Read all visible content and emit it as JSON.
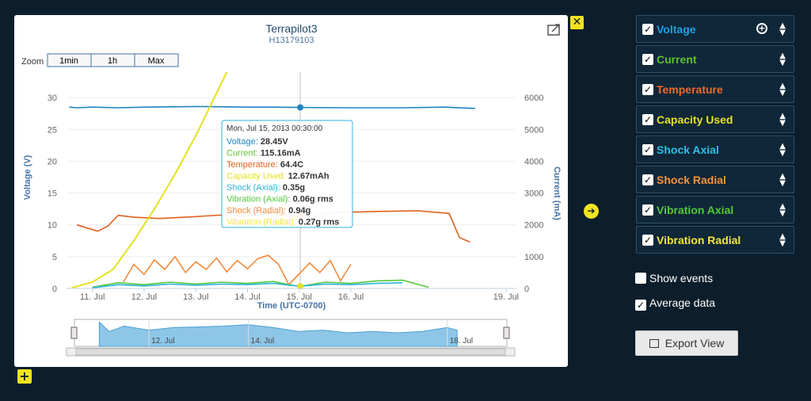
{
  "chart": {
    "title": "Terrapilot3",
    "subtitle": "H13179103",
    "zoom_label": "Zoom",
    "zoom_buttons": [
      "1min",
      "1h",
      "Max"
    ],
    "ylabel_left": "Voltage (V)",
    "ylabel_right": "Current (mA)",
    "xlabel": "Time (UTC-0700)",
    "nav_labels": [
      "12. Jul",
      "14. Jul",
      "18. Jul"
    ]
  },
  "tooltip": {
    "header": "Mon, Jul 15, 2013 00:30:00",
    "rows": [
      {
        "label": "Voltage:",
        "value": "28.45V",
        "color": "#1f82c0"
      },
      {
        "label": "Current:",
        "value": "115.16mA",
        "color": "#5fc02e"
      },
      {
        "label": "Temperature:",
        "value": "64.4C",
        "color": "#e0601c"
      },
      {
        "label": "Capacity Used:",
        "value": "12.67mAh",
        "color": "#e6e020"
      },
      {
        "label": "Shock (Axial):",
        "value": "0.35g",
        "color": "#2cb4dc"
      },
      {
        "label": "Vibration (Axial):",
        "value": "0.06g rms",
        "color": "#55c83a"
      },
      {
        "label": "Shock (Radial):",
        "value": "0.94g",
        "color": "#f08a3c"
      },
      {
        "label": "Vibration (Radial):",
        "value": "0.27g rms",
        "color": "#f4e63a"
      }
    ]
  },
  "chart_data": {
    "type": "line",
    "title": "Terrapilot3",
    "subtitle": "H13179103",
    "xlabel": "Time (UTC-0700)",
    "ylabel": "Voltage (V)",
    "y2label": "Current (mA)",
    "x_ticks": [
      "11. Jul",
      "12. Jul",
      "13. Jul",
      "14. Jul",
      "15. Jul",
      "16. Jul",
      "19. Jul"
    ],
    "x_tick_days": [
      11,
      12,
      13,
      14,
      15,
      16,
      19
    ],
    "xlim_days": [
      10.5,
      19.2
    ],
    "y_ticks": [
      0,
      5,
      10,
      15,
      20,
      25,
      30
    ],
    "y2_ticks": [
      0,
      1000,
      2000,
      3000,
      4000,
      5000,
      6000
    ],
    "ylim": [
      0,
      34
    ],
    "y2lim": [
      0,
      6800
    ],
    "series": [
      {
        "name": "Voltage",
        "color": "#1f82c0",
        "x": [
          10.55,
          10.7,
          11.0,
          11.5,
          12.0,
          13.0,
          14.0,
          14.5,
          15.0,
          16.0,
          17.0,
          17.8,
          18.4
        ],
        "y": [
          28.5,
          28.4,
          28.5,
          28.4,
          28.5,
          28.6,
          28.5,
          28.5,
          28.45,
          28.4,
          28.4,
          28.5,
          28.3
        ]
      },
      {
        "name": "Temperature",
        "color": "#e0601c",
        "x": [
          10.7,
          10.9,
          11.1,
          11.3,
          11.5,
          11.8,
          12.3,
          13.0,
          13.6,
          14.0,
          14.4,
          15.0,
          15.6,
          16.5,
          17.3,
          17.9,
          18.1,
          18.3
        ],
        "y": [
          10.0,
          9.5,
          9.0,
          9.8,
          11.5,
          11.2,
          11.0,
          11.3,
          11.6,
          11.4,
          11.8,
          11.3,
          11.9,
          12.1,
          12.2,
          11.8,
          8.0,
          7.3
        ]
      },
      {
        "name": "Capacity Used",
        "color": "#e6e020",
        "x": [
          10.6,
          11.0,
          11.4,
          11.8,
          12.2,
          12.6,
          13.0,
          13.6
        ],
        "y": [
          0.1,
          1.0,
          3.0,
          7.5,
          12.5,
          18.0,
          24.0,
          34.0
        ]
      },
      {
        "name": "Shock Radial",
        "color": "#f08a3c",
        "x": [
          11.6,
          11.8,
          12.0,
          12.2,
          12.4,
          12.6,
          12.8,
          13.0,
          13.2,
          13.4,
          13.6,
          13.8,
          14.0,
          14.2,
          14.4,
          14.6,
          14.8,
          15.2,
          15.4,
          15.6,
          15.8,
          16.0
        ],
        "y": [
          1.0,
          3.8,
          2.2,
          4.5,
          3.0,
          5.0,
          2.5,
          4.2,
          3.0,
          4.8,
          2.6,
          4.4,
          3.1,
          4.7,
          5.2,
          3.8,
          0.6,
          4.0,
          2.5,
          4.4,
          1.2,
          3.8
        ]
      },
      {
        "name": "Vibration Axial",
        "color": "#55c83a",
        "x": [
          11.0,
          11.5,
          12.0,
          12.5,
          13.0,
          13.5,
          14.0,
          14.5,
          15.0,
          15.5,
          16.0,
          16.5,
          17.0,
          17.5
        ],
        "y": [
          0.2,
          0.9,
          0.6,
          1.0,
          0.7,
          1.0,
          0.8,
          1.1,
          0.3,
          1.0,
          0.8,
          1.2,
          1.3,
          0.2
        ]
      },
      {
        "name": "Shock Axial",
        "color": "#2cb4dc",
        "x": [
          11.0,
          11.5,
          12.0,
          12.5,
          13.0,
          13.5,
          14.0,
          14.5,
          15.0,
          15.5,
          16.0,
          16.5,
          17.0
        ],
        "y": [
          0.1,
          0.6,
          0.4,
          0.7,
          0.5,
          0.7,
          0.6,
          0.8,
          0.35,
          0.7,
          0.6,
          0.8,
          0.9
        ]
      }
    ],
    "tooltip_x_day": 15.02,
    "navigator": {
      "x": [
        11.0,
        11.2,
        11.5,
        12.0,
        12.5,
        13.0,
        13.5,
        14.0,
        14.5,
        15.0,
        15.5,
        16.0,
        16.5,
        17.0,
        17.5,
        18.0,
        18.2
      ],
      "y": [
        0.9,
        0.55,
        0.75,
        0.6,
        0.7,
        0.72,
        0.75,
        0.8,
        0.7,
        0.55,
        0.6,
        0.5,
        0.55,
        0.5,
        0.55,
        0.7,
        0.6
      ]
    }
  },
  "series_panel": [
    {
      "label": "Voltage",
      "color": "#1f9fe0",
      "checked": true,
      "has_plus": true
    },
    {
      "label": "Current",
      "color": "#5fc02e",
      "checked": true,
      "has_plus": false
    },
    {
      "label": "Temperature",
      "color": "#f06a2a",
      "checked": true,
      "has_plus": false
    },
    {
      "label": "Capacity Used",
      "color": "#e6e020",
      "checked": true,
      "has_plus": false
    },
    {
      "label": "Shock Axial",
      "color": "#2cc0e8",
      "checked": true,
      "has_plus": false
    },
    {
      "label": "Shock Radial",
      "color": "#f5923e",
      "checked": true,
      "has_plus": false
    },
    {
      "label": "Vibration Axial",
      "color": "#55c83a",
      "checked": true,
      "has_plus": false
    },
    {
      "label": "Vibration Radial",
      "color": "#f4e63a",
      "checked": true,
      "has_plus": false
    }
  ],
  "options": {
    "show_events": {
      "label": "Show events",
      "checked": false
    },
    "average_data": {
      "label": "Average data",
      "checked": true
    }
  },
  "export": {
    "label": "Export View"
  }
}
